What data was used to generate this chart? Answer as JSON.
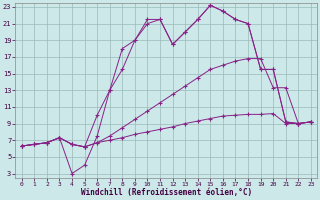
{
  "xlabel": "Windchill (Refroidissement éolien,°C)",
  "bg_color": "#cce8e8",
  "grid_color": "#99bbbb",
  "line_color": "#882288",
  "xlim_min": -0.5,
  "xlim_max": 23.5,
  "ylim_min": 2.5,
  "ylim_max": 23.5,
  "xticks": [
    0,
    1,
    2,
    3,
    4,
    5,
    6,
    7,
    8,
    9,
    10,
    11,
    12,
    13,
    14,
    15,
    16,
    17,
    18,
    19,
    20,
    21,
    22,
    23
  ],
  "yticks": [
    3,
    5,
    7,
    9,
    11,
    13,
    15,
    17,
    19,
    21,
    23
  ],
  "line1_x": [
    0,
    1,
    2,
    3,
    4,
    5,
    6,
    7,
    8,
    9,
    10,
    11,
    12,
    13,
    14,
    15,
    16,
    17,
    18,
    19,
    20,
    21,
    22,
    23
  ],
  "line1_y": [
    6.3,
    6.5,
    6.7,
    7.3,
    6.5,
    6.2,
    6.7,
    7.0,
    7.3,
    7.7,
    8.0,
    8.3,
    8.6,
    9.0,
    9.3,
    9.6,
    9.9,
    10.0,
    10.1,
    10.1,
    10.2,
    9.0,
    9.0,
    9.2
  ],
  "line2_x": [
    0,
    1,
    2,
    3,
    4,
    5,
    6,
    7,
    8,
    9,
    10,
    11,
    12,
    13,
    14,
    15,
    16,
    17,
    18,
    19,
    20,
    21,
    22,
    23
  ],
  "line2_y": [
    6.3,
    6.5,
    6.7,
    7.3,
    6.5,
    6.2,
    6.7,
    7.5,
    8.5,
    9.5,
    10.5,
    11.5,
    12.5,
    13.5,
    14.5,
    15.5,
    16.0,
    16.5,
    16.8,
    16.8,
    13.3,
    13.3,
    9.0,
    9.2
  ],
  "line3_x": [
    0,
    1,
    2,
    3,
    4,
    5,
    6,
    7,
    8,
    9,
    10,
    11,
    12,
    13,
    14,
    15,
    16,
    17,
    18,
    19,
    20,
    21,
    22,
    23
  ],
  "line3_y": [
    6.3,
    6.5,
    6.7,
    7.3,
    3.0,
    4.0,
    7.5,
    13.0,
    15.5,
    19.0,
    21.0,
    21.5,
    18.5,
    20.0,
    21.5,
    23.2,
    22.5,
    21.5,
    21.0,
    15.5,
    15.5,
    9.2,
    9.0,
    9.2
  ],
  "line4_x": [
    0,
    1,
    2,
    3,
    4,
    5,
    6,
    7,
    8,
    9,
    10,
    11,
    12,
    13,
    14,
    15,
    16,
    17,
    18,
    19,
    20,
    21,
    22,
    23
  ],
  "line4_y": [
    6.3,
    6.5,
    6.7,
    7.3,
    6.5,
    6.2,
    10.0,
    13.0,
    18.0,
    19.0,
    21.5,
    21.5,
    18.5,
    20.0,
    21.5,
    23.2,
    22.5,
    21.5,
    21.0,
    15.5,
    15.5,
    9.2,
    9.0,
    9.2
  ]
}
